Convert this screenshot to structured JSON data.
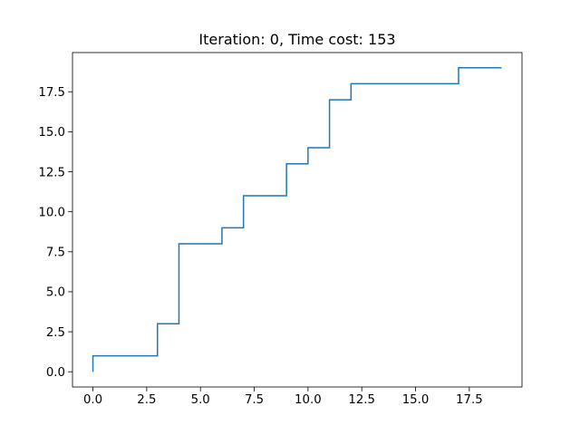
{
  "chart_data": {
    "type": "line",
    "drawstyle": "steps-post",
    "title": "Iteration: 0, Time cost: 153",
    "xlabel": "",
    "ylabel": "",
    "xlim": [
      -0.95,
      19.95
    ],
    "ylim": [
      -0.95,
      19.95
    ],
    "xticks": [
      0.0,
      2.5,
      5.0,
      7.5,
      10.0,
      12.5,
      15.0,
      17.5
    ],
    "xtick_labels": [
      "0.0",
      "2.5",
      "5.0",
      "7.5",
      "10.0",
      "12.5",
      "15.0",
      "17.5"
    ],
    "yticks": [
      0.0,
      2.5,
      5.0,
      7.5,
      10.0,
      12.5,
      15.0,
      17.5
    ],
    "ytick_labels": [
      "0.0",
      "2.5",
      "5.0",
      "7.5",
      "10.0",
      "12.5",
      "15.0",
      "17.5"
    ],
    "grid": false,
    "series": [
      {
        "color": "#1f77b4",
        "x": [
          0,
          0,
          3,
          3,
          4,
          4,
          6,
          6,
          7,
          7,
          9,
          9,
          10,
          10,
          11,
          11,
          12,
          12,
          17,
          17,
          19
        ],
        "y": [
          0,
          1,
          1,
          3,
          3,
          8,
          8,
          9,
          9,
          11,
          11,
          13,
          13,
          14,
          14,
          17,
          17,
          18,
          18,
          19,
          19
        ]
      }
    ]
  }
}
